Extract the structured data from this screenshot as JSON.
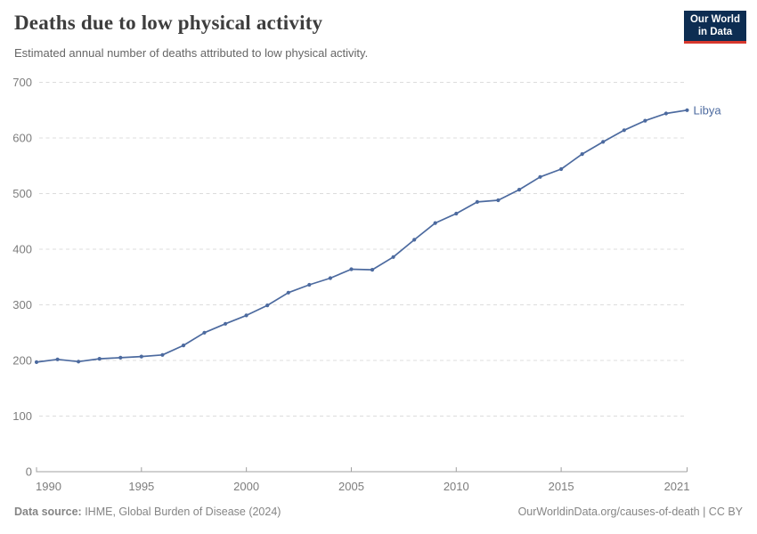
{
  "header": {
    "title": "Deaths due to low physical activity",
    "subtitle": "Estimated annual number of deaths attributed to low physical activity.",
    "logo_line1": "Our World",
    "logo_line2": "in Data"
  },
  "chart_data": {
    "type": "line",
    "title": "Deaths due to low physical activity",
    "subtitle": "Estimated annual number of deaths attributed to low physical activity.",
    "x": [
      1990,
      1991,
      1992,
      1993,
      1994,
      1995,
      1996,
      1997,
      1998,
      1999,
      2000,
      2001,
      2002,
      2003,
      2004,
      2005,
      2006,
      2007,
      2008,
      2009,
      2010,
      2011,
      2012,
      2013,
      2014,
      2015,
      2016,
      2017,
      2018,
      2019,
      2020,
      2021
    ],
    "series": [
      {
        "name": "Libya",
        "color": "#4c6a9f",
        "values": [
          197,
          202,
          198,
          203,
          205,
          207,
          210,
          227,
          250,
          266,
          281,
          299,
          322,
          336,
          348,
          364,
          363,
          386,
          417,
          447,
          464,
          485,
          488,
          507,
          530,
          544,
          571,
          593,
          614,
          631,
          644,
          650
        ]
      }
    ],
    "xlabel": "",
    "ylabel": "",
    "ylim": [
      0,
      700
    ],
    "yticks": [
      0,
      100,
      200,
      300,
      400,
      500,
      600,
      700
    ],
    "xticks": [
      1990,
      1995,
      2000,
      2005,
      2010,
      2015,
      2021
    ],
    "grid": "horizontal-dashed",
    "legend": "line-end-label",
    "markers": "dots"
  },
  "colors": {
    "line": "#4c6a9f",
    "grid": "#dcdcdc",
    "axis": "#a0a0a0",
    "tick_label": "#7d7d7d",
    "title": "#3d3d3d",
    "subtitle": "#666666",
    "footer": "#858585",
    "logo_bg": "#0d2d52",
    "logo_stripe": "#d7382d"
  },
  "footer": {
    "source_label": "Data source:",
    "source_text": " IHME, Global Burden of Disease (2024)",
    "credit": "OurWorldinData.org/causes-of-death | CC BY"
  }
}
